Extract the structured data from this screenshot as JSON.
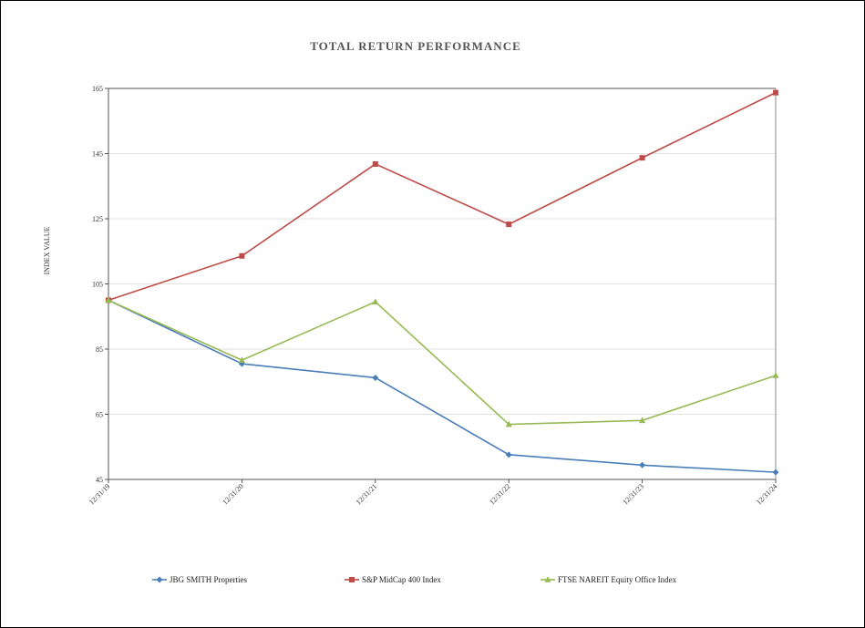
{
  "chart_data": {
    "type": "line",
    "title": "TOTAL RETURN PERFORMANCE",
    "ylabel": "INDEX VALUE",
    "xlabel": "",
    "categories": [
      "12/31/19",
      "12/31/20",
      "12/31/21",
      "12/31/22",
      "12/31/23",
      "12/31/24"
    ],
    "ylim": [
      45,
      165
    ],
    "yticks": [
      45,
      65,
      85,
      105,
      125,
      145,
      165
    ],
    "grid": true,
    "legend_position": "bottom",
    "series": [
      {
        "name": "JBG SMITH Properties",
        "color": "#4a7ebb",
        "marker": "diamond",
        "values": [
          100,
          80.5,
          76.2,
          52.6,
          49.4,
          47.2
        ]
      },
      {
        "name": "S&P MidCap 400 Index",
        "color": "#be4b48",
        "marker": "square",
        "values": [
          100,
          113.6,
          141.8,
          123.3,
          143.7,
          163.7
        ]
      },
      {
        "name": "FTSE NAREIT Equity Office Index",
        "color": "#98b954",
        "marker": "triangle",
        "values": [
          100,
          81.6,
          99.5,
          61.9,
          63.1,
          76.9
        ]
      }
    ]
  }
}
